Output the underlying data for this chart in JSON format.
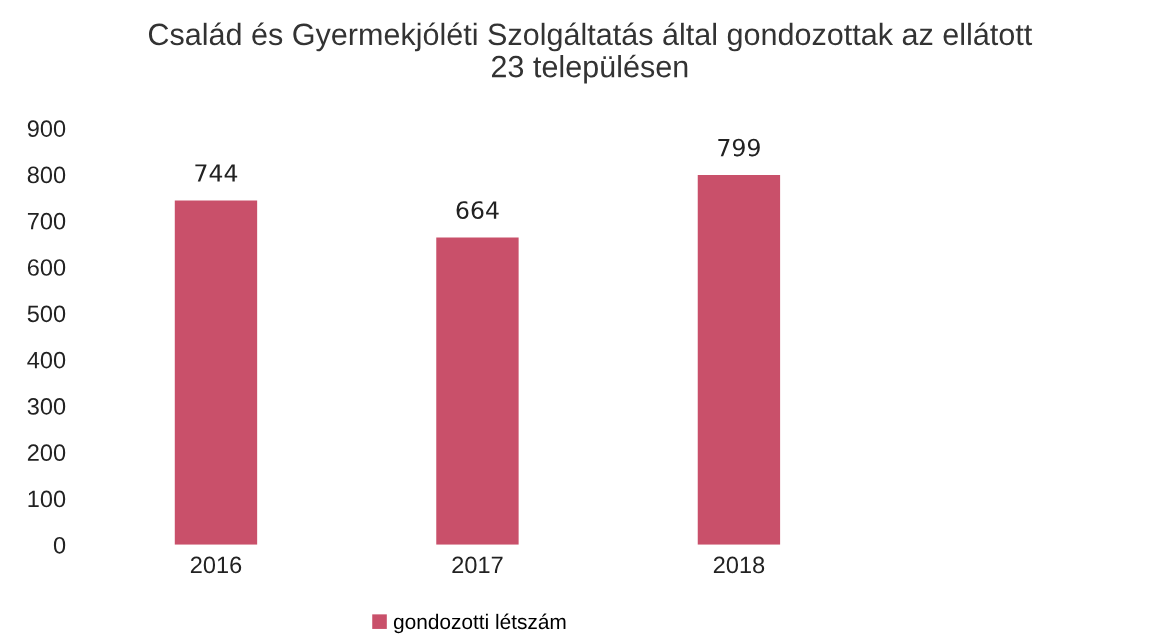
{
  "chart_data": {
    "type": "bar",
    "title": "Család és Gyermekjóléti Szolgáltatás által gondozottak az ellátott\n23 településen",
    "categories": [
      "2016",
      "2017",
      "2018"
    ],
    "series": [
      {
        "name": "gondozotti létszám",
        "color": "#c9506a",
        "values": [
          744,
          664,
          799
        ]
      }
    ],
    "ylim": [
      0,
      900
    ],
    "yticks": [
      0,
      100,
      200,
      300,
      400,
      500,
      600,
      700,
      800,
      900
    ],
    "data_labels": true,
    "grid": false,
    "legend": "bottom"
  }
}
